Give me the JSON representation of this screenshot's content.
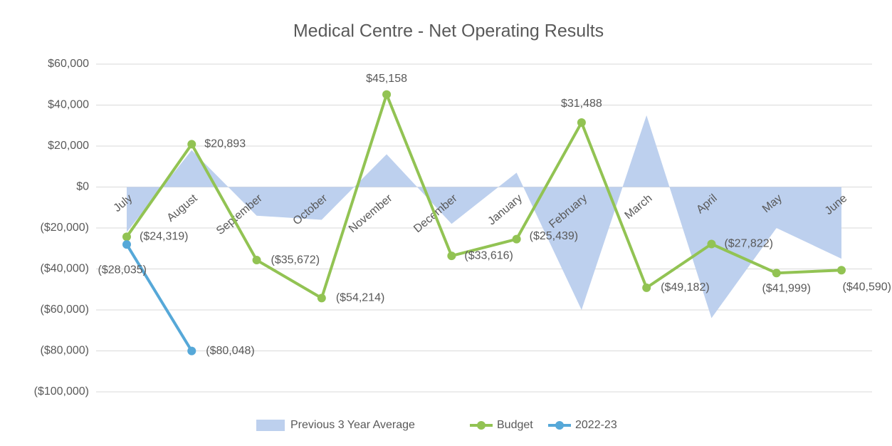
{
  "chart_data": {
    "type": "line",
    "title": "Medical Centre - Net Operating Results",
    "categories": [
      "July",
      "August",
      "September",
      "October",
      "November",
      "December",
      "January",
      "February",
      "March",
      "April",
      "May",
      "June"
    ],
    "series": [
      {
        "name": "Previous 3 Year Average",
        "kind": "area",
        "color": "#bdd0ee",
        "values": [
          -22000,
          18000,
          -14000,
          -16000,
          16000,
          -18000,
          7000,
          -60000,
          35000,
          -64000,
          -20000,
          -35000
        ]
      },
      {
        "name": "Budget",
        "kind": "line",
        "color": "#92c353",
        "values": [
          -24319,
          20893,
          -35672,
          -54214,
          45158,
          -33616,
          -25439,
          31488,
          -49182,
          -27822,
          -41999,
          -40590
        ],
        "value_labels": [
          "($24,319)",
          "$20,893",
          "($35,672)",
          "($54,214)",
          "$45,158",
          "($33,616)",
          "($25,439)",
          "$31,488",
          "($49,182)",
          "($27,822)",
          "($41,999)",
          "($40,590)"
        ]
      },
      {
        "name": "2022-23",
        "kind": "line",
        "color": "#56a8d8",
        "values": [
          -28035,
          -80048,
          null,
          null,
          null,
          null,
          null,
          null,
          null,
          null,
          null,
          null
        ],
        "value_labels": [
          "($28,035)",
          "($80,048)",
          null,
          null,
          null,
          null,
          null,
          null,
          null,
          null,
          null,
          null
        ]
      }
    ],
    "ylim": [
      -100000,
      60000
    ],
    "yticks": [
      {
        "value": -100000,
        "label": "($100,000)"
      },
      {
        "value": -80000,
        "label": "($80,000)"
      },
      {
        "value": -60000,
        "label": "($60,000)"
      },
      {
        "value": -40000,
        "label": "($40,000)"
      },
      {
        "value": -20000,
        "label": "($20,000)"
      },
      {
        "value": 0,
        "label": "$0"
      },
      {
        "value": 20000,
        "label": "$20,000"
      },
      {
        "value": 40000,
        "label": "$40,000"
      },
      {
        "value": 60000,
        "label": "$60,000"
      }
    ],
    "grid": true,
    "legend": "bottom"
  }
}
